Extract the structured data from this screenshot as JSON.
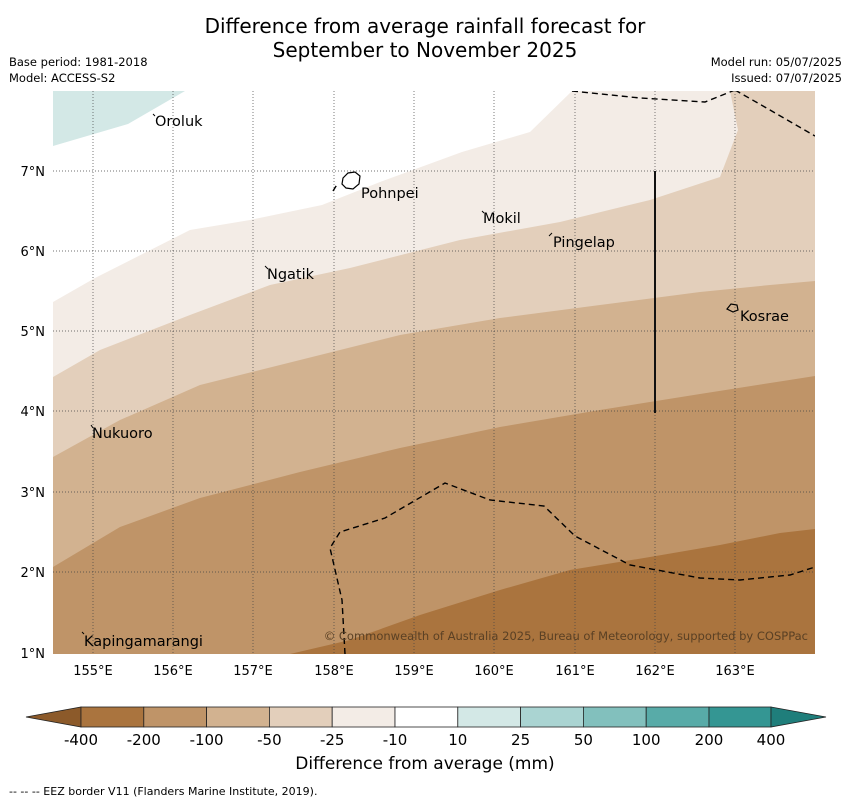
{
  "header": {
    "title_line1": "Difference from average rainfall forecast for",
    "title_line2": "September to November 2025",
    "base_period": "Base period: 1981-2018",
    "model": "Model: ACCESS-S2",
    "model_run": "Model run: 05/07/2025",
    "issued": "Issued: 07/07/2025"
  },
  "map": {
    "lon_ticks": [
      "155°E",
      "156°E",
      "157°E",
      "158°E",
      "159°E",
      "160°E",
      "161°E",
      "162°E",
      "163°E"
    ],
    "lat_ticks": [
      "7°N",
      "6°N",
      "5°N",
      "4°N",
      "3°N",
      "2°N",
      "1°N"
    ],
    "places": [
      {
        "name": "Oroluk",
        "lon": 155.75,
        "lat": 7.7
      },
      {
        "name": "Pohnpei",
        "lon": 158.2,
        "lat": 6.9
      },
      {
        "name": "Mokil",
        "lon": 159.8,
        "lat": 6.5
      },
      {
        "name": "Pingelap",
        "lon": 160.75,
        "lat": 6.2
      },
      {
        "name": "Ngatik",
        "lon": 157.15,
        "lat": 5.85
      },
      {
        "name": "Kosrae",
        "lon": 162.95,
        "lat": 5.3
      },
      {
        "name": "Nukuoro",
        "lon": 154.95,
        "lat": 3.85
      },
      {
        "name": "Kapingamarangi",
        "lon": 154.8,
        "lat": 1.25
      }
    ],
    "copyright": "© Commonwealth of Australia 2025, Bureau of Meteorology, supported by COSPPac"
  },
  "colorbar": {
    "labels": [
      "-400",
      "-200",
      "-100",
      "-50",
      "-25",
      "-10",
      "10",
      "25",
      "50",
      "100",
      "200",
      "400"
    ],
    "colors": [
      "#8c5a2a",
      "#aa743e",
      "#bf9468",
      "#d2b290",
      "#e3cfbb",
      "#f3ece6",
      "#ffffff",
      "#d3e8e6",
      "#aad4d2",
      "#82c0bd",
      "#58aba8",
      "#349693",
      "#1f7e7b"
    ],
    "title": "Difference from average (mm)"
  },
  "footnote": "--  --  -- EEZ border V11 (Flanders Marine Institute, 2019)."
}
